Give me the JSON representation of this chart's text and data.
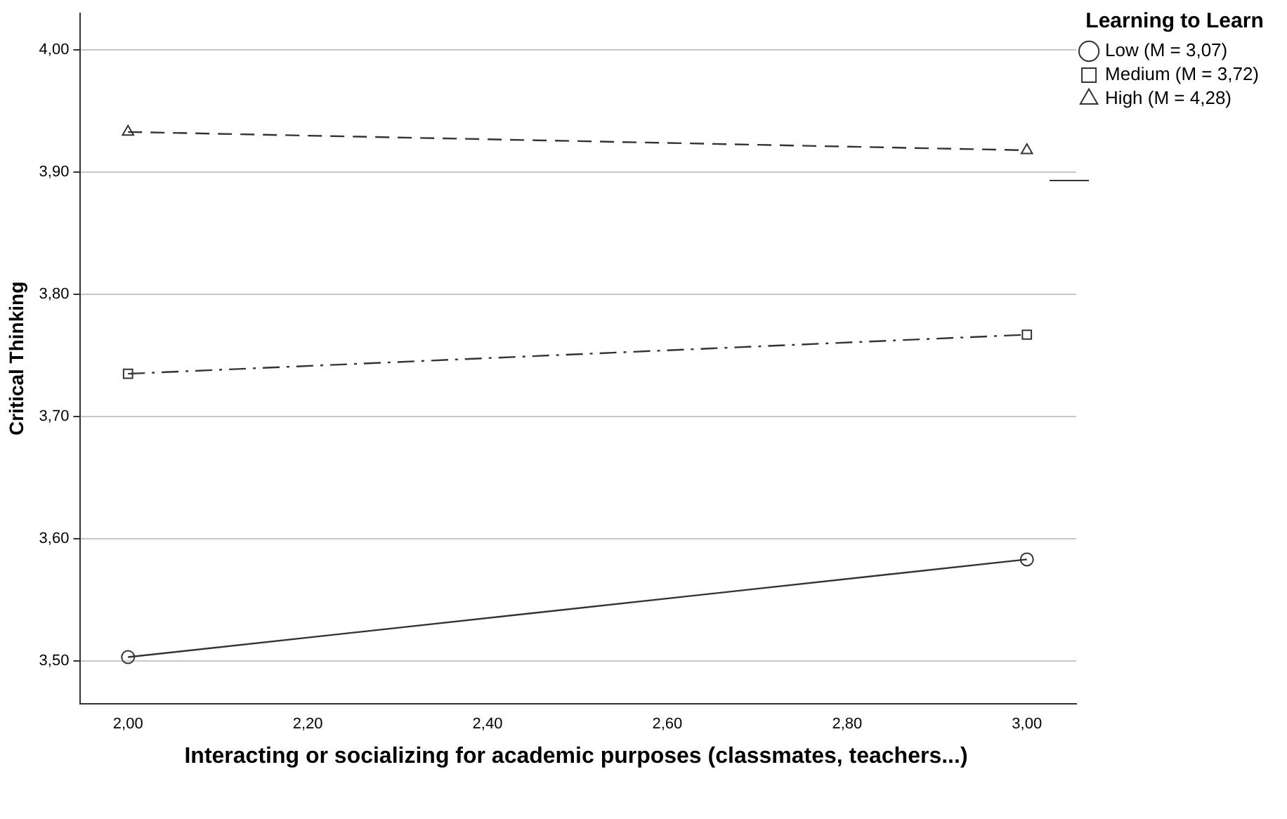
{
  "chart_data": {
    "type": "line",
    "xlabel": "Interacting or socializing for academic purposes (classmates, teachers...)",
    "ylabel": "Critical Thinking",
    "legend_title": "Learning to Learn",
    "legend": "top right",
    "grid": "y",
    "x": [
      2,
      3
    ],
    "xlim": [
      1.947,
      3.055
    ],
    "xticks": [
      {
        "value": 2,
        "label": "2,00"
      },
      {
        "value": 2.2,
        "label": "2,20"
      },
      {
        "value": 2.4,
        "label": "2,40"
      },
      {
        "value": 2.6,
        "label": "2,60"
      },
      {
        "value": 2.8,
        "label": "2,80"
      },
      {
        "value": 3,
        "label": "3,00"
      }
    ],
    "ylim": [
      3.465,
      4.03
    ],
    "yticks": [
      {
        "value": 3.5,
        "label": "3,50"
      },
      {
        "value": 3.6,
        "label": "3,60"
      },
      {
        "value": 3.7,
        "label": "3,70"
      },
      {
        "value": 3.8,
        "label": "3,80"
      },
      {
        "value": 3.9,
        "label": "3,90"
      },
      {
        "value": 4,
        "label": "4,00"
      }
    ],
    "series": [
      {
        "name": "Low (M = 3,07)",
        "color": "#333333",
        "values": [
          3.503,
          3.583
        ],
        "marker": "circle",
        "line_style": "solid"
      },
      {
        "name": "Medium (M = 3,72)",
        "color": "#333333",
        "values": [
          3.735,
          3.767
        ],
        "marker": "square",
        "line_style": "dashdot"
      },
      {
        "name": "High (M = 4,28)",
        "color": "#333333",
        "values": [
          3.933,
          3.918
        ],
        "marker": "triangle",
        "line_style": "dashed"
      }
    ]
  }
}
